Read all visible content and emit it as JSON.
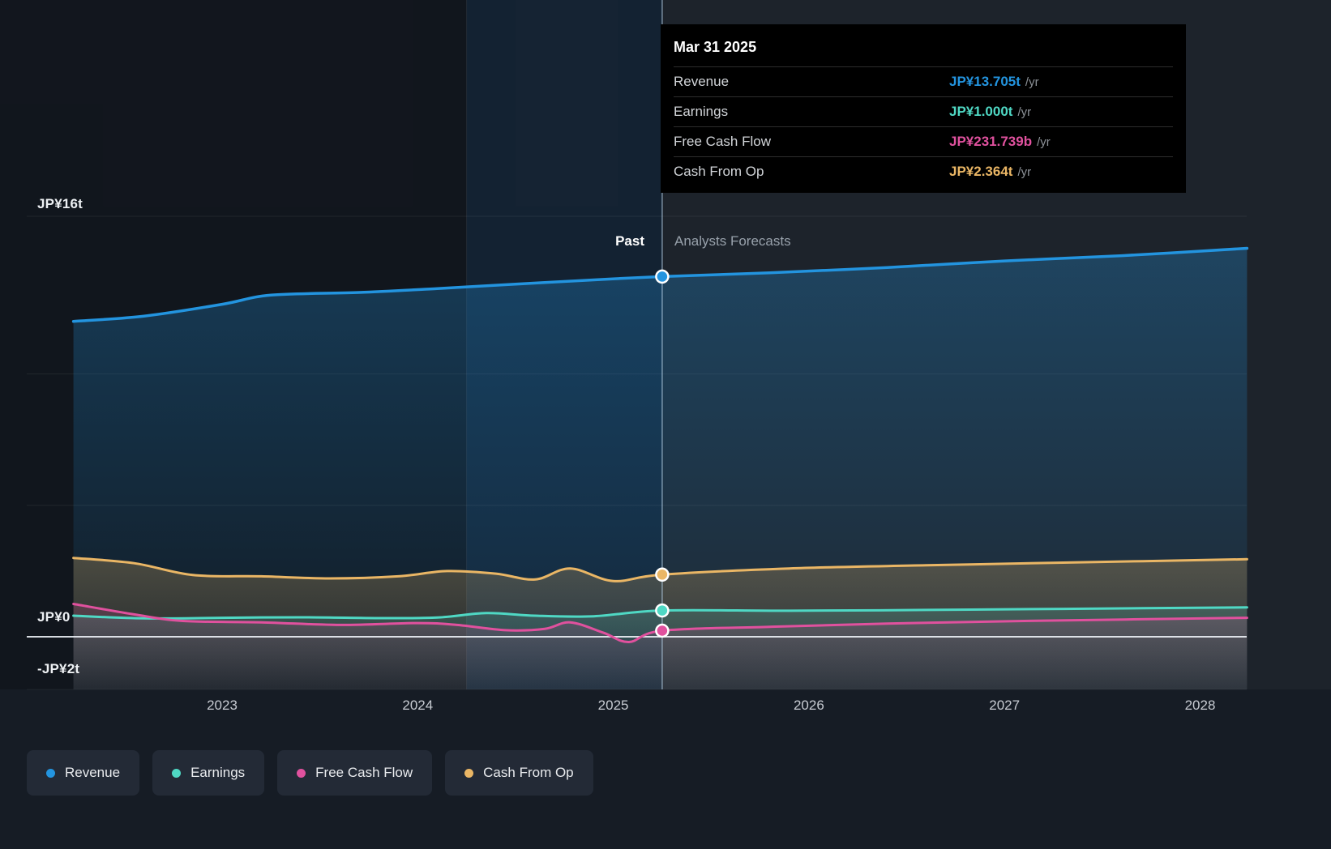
{
  "labels": {
    "past": "Past",
    "forecast": "Analysts Forecasts"
  },
  "axis": {
    "y_top": "JP¥16t",
    "y_zero": "JP¥0",
    "y_neg": "-JP¥2t"
  },
  "tooltip": {
    "date": "Mar 31 2025",
    "rows": [
      {
        "label": "Revenue",
        "value": "JP¥13.705t",
        "suffix": "/yr",
        "color": "#2394df"
      },
      {
        "label": "Earnings",
        "value": "JP¥1.000t",
        "suffix": "/yr",
        "color": "#4fd8c4"
      },
      {
        "label": "Free Cash Flow",
        "value": "JP¥231.739b",
        "suffix": "/yr",
        "color": "#e0519e"
      },
      {
        "label": "Cash From Op",
        "value": "JP¥2.364t",
        "suffix": "/yr",
        "color": "#eab665"
      }
    ]
  },
  "legend": [
    {
      "label": "Revenue",
      "color": "#2394df"
    },
    {
      "label": "Earnings",
      "color": "#4fd8c4"
    },
    {
      "label": "Free Cash Flow",
      "color": "#e0519e"
    },
    {
      "label": "Cash From Op",
      "color": "#eab665"
    }
  ],
  "chart_data": {
    "type": "line",
    "title": "Past and forecast Revenue, Earnings, Free Cash Flow and Cash From Op",
    "unit": "JP¥ trillions per year",
    "xlim": [
      2022.24,
      2028.24
    ],
    "ylim": [
      -2,
      16
    ],
    "x_ticks": [
      2023,
      2024,
      2025,
      2026,
      2027,
      2028
    ],
    "gridline_values": [
      16,
      10,
      5
    ],
    "zero_line_value": 0,
    "divider_x": 2025.25,
    "divider_date": "Mar 31 2025",
    "highlight_band": [
      2024.25,
      2025.25
    ],
    "series": [
      {
        "name": "Revenue",
        "color": "#2394df",
        "marker_value": 13.705,
        "points": [
          [
            2022.24,
            12.0
          ],
          [
            2022.6,
            12.2
          ],
          [
            2023.0,
            12.65
          ],
          [
            2023.25,
            13.0
          ],
          [
            2023.7,
            13.1
          ],
          [
            2024.1,
            13.25
          ],
          [
            2024.5,
            13.42
          ],
          [
            2024.9,
            13.58
          ],
          [
            2025.25,
            13.705
          ],
          [
            2025.8,
            13.85
          ],
          [
            2026.4,
            14.05
          ],
          [
            2027.0,
            14.3
          ],
          [
            2027.6,
            14.5
          ],
          [
            2028.24,
            14.78
          ]
        ]
      },
      {
        "name": "Cash From Op",
        "color": "#eab665",
        "marker_value": 2.364,
        "points": [
          [
            2022.24,
            3.0
          ],
          [
            2022.55,
            2.8
          ],
          [
            2022.85,
            2.35
          ],
          [
            2023.2,
            2.3
          ],
          [
            2023.55,
            2.22
          ],
          [
            2023.9,
            2.3
          ],
          [
            2024.15,
            2.5
          ],
          [
            2024.4,
            2.4
          ],
          [
            2024.6,
            2.18
          ],
          [
            2024.78,
            2.6
          ],
          [
            2025.0,
            2.12
          ],
          [
            2025.25,
            2.364
          ],
          [
            2025.9,
            2.6
          ],
          [
            2026.6,
            2.72
          ],
          [
            2027.3,
            2.82
          ],
          [
            2028.24,
            2.95
          ]
        ]
      },
      {
        "name": "Earnings",
        "color": "#4fd8c4",
        "marker_value": 1.0,
        "points": [
          [
            2022.24,
            0.8
          ],
          [
            2022.6,
            0.7
          ],
          [
            2023.0,
            0.72
          ],
          [
            2023.4,
            0.74
          ],
          [
            2023.8,
            0.71
          ],
          [
            2024.1,
            0.73
          ],
          [
            2024.35,
            0.9
          ],
          [
            2024.6,
            0.8
          ],
          [
            2024.9,
            0.78
          ],
          [
            2025.25,
            1.0
          ],
          [
            2025.9,
            0.99
          ],
          [
            2026.6,
            1.02
          ],
          [
            2027.3,
            1.06
          ],
          [
            2028.24,
            1.12
          ]
        ]
      },
      {
        "name": "Free Cash Flow",
        "color": "#e0519e",
        "marker_value": 0.232,
        "points": [
          [
            2022.24,
            1.25
          ],
          [
            2022.55,
            0.85
          ],
          [
            2022.8,
            0.6
          ],
          [
            2023.2,
            0.55
          ],
          [
            2023.6,
            0.45
          ],
          [
            2024.0,
            0.52
          ],
          [
            2024.2,
            0.45
          ],
          [
            2024.45,
            0.25
          ],
          [
            2024.65,
            0.3
          ],
          [
            2024.78,
            0.55
          ],
          [
            2024.95,
            0.15
          ],
          [
            2025.08,
            -0.2
          ],
          [
            2025.25,
            0.232
          ],
          [
            2025.8,
            0.38
          ],
          [
            2026.4,
            0.5
          ],
          [
            2027.1,
            0.6
          ],
          [
            2028.24,
            0.72
          ]
        ]
      }
    ]
  }
}
